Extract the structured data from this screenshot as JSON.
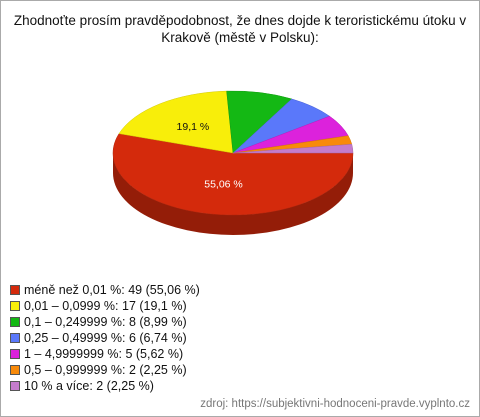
{
  "chart_data": {
    "type": "pie",
    "title": "Zhodnoťte prosím pravděpodobnost, že dnes dojde k teroristickému útoku v Krakově (městě v Polsku):",
    "categories": [
      "méně než 0,01 %: 49 (55,06 %)",
      "0,01 – 0,0999 %: 17 (19,1 %)",
      "0,1 – 0,249999 %: 8 (8,99 %)",
      "0,25 – 0,49999 %: 6 (6,74 %)",
      "1 – 4,9999999 %: 5 (5,62 %)",
      "0,5 – 0,999999 %: 2 (2,25 %)",
      "10 % a více: 2 (2,25 %)"
    ],
    "values": [
      55.06,
      19.1,
      8.99,
      6.74,
      5.62,
      2.25,
      2.25
    ],
    "value_labels": [
      "55,06 %",
      "19,1 %",
      null,
      null,
      null,
      null,
      null
    ],
    "colors": [
      "#d42a0c",
      "#f8ee0a",
      "#14b814",
      "#5a78fa",
      "#dc22dc",
      "#f88a0a",
      "#c47ccc"
    ],
    "source": "zdroj: https://subjektivni-hodnoceni-pravde.vyplnto.cz"
  }
}
